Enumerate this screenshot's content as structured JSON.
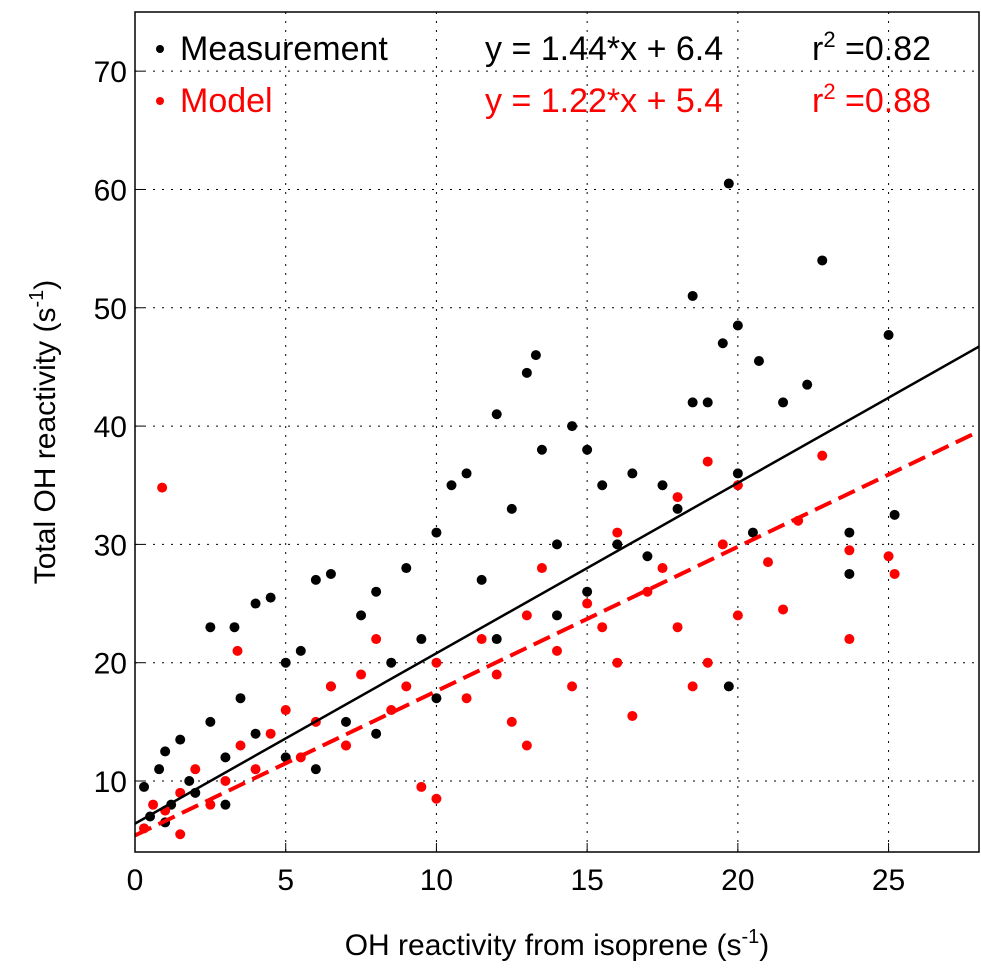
{
  "chart_data": {
    "type": "scatter",
    "xlabel": [
      "OH reactivity from isoprene (s",
      "-1",
      ")"
    ],
    "ylabel": [
      "Total OH reactivity (s",
      "-1",
      ")"
    ],
    "xlim": [
      0,
      28
    ],
    "ylim": [
      4,
      75
    ],
    "xticks": [
      0,
      5,
      10,
      15,
      20,
      25
    ],
    "yticks": [
      10,
      20,
      30,
      40,
      50,
      60,
      70
    ],
    "grid": true,
    "legend": "upper left",
    "series": [
      {
        "name": "Measurement",
        "color": "#000000",
        "fit": {
          "slope": 1.44,
          "intercept": 6.4,
          "equation": "y = 1.44*x + 6.4",
          "r2_text": [
            "r",
            "2",
            " =0.82"
          ],
          "dash": false
        },
        "x": [
          0.3,
          0.5,
          0.8,
          1,
          1.2,
          1.5,
          1.8,
          2,
          2.5,
          2.5,
          3,
          3.3,
          3.5,
          4,
          4,
          4.5,
          5,
          5,
          5.5,
          6,
          6.5,
          6.5,
          7,
          7.5,
          8,
          8.5,
          9,
          9.5,
          10,
          10.5,
          11,
          11.5,
          12,
          12.5,
          13,
          13.3,
          13.5,
          14,
          14.5,
          15,
          15.5,
          16,
          16.5,
          17,
          17.5,
          18,
          18.5,
          18.5,
          19,
          19.5,
          19.7,
          20,
          20,
          20.5,
          20.7,
          21.5,
          22.3,
          22.8,
          23.7,
          23.7,
          25,
          25.2,
          19.7,
          15,
          12,
          8,
          6,
          3,
          1,
          10,
          14
        ],
        "values": [
          9.5,
          7,
          11,
          12.5,
          8,
          13.5,
          10,
          9,
          23,
          15,
          12,
          23,
          17,
          25,
          14,
          25.5,
          20,
          12,
          21,
          27,
          27.5,
          18,
          15,
          24,
          26,
          20,
          28,
          22,
          31,
          35,
          36,
          27,
          41,
          33,
          44.5,
          46,
          38,
          30,
          40,
          38,
          35,
          30,
          36,
          29,
          35,
          33,
          51,
          42,
          42,
          47,
          60.5,
          48.5,
          36,
          31,
          45.5,
          42,
          43.5,
          54,
          31,
          27.5,
          47.7,
          32.5,
          18,
          26,
          22,
          14,
          11,
          8,
          6.5,
          17,
          24
        ]
      },
      {
        "name": "Model",
        "color": "#ff0000",
        "fit": {
          "slope": 1.22,
          "intercept": 5.4,
          "equation": "y = 1.22*x + 5.4",
          "r2_text": [
            "r",
            "2",
            " =0.88"
          ],
          "dash": true
        },
        "x": [
          0.9,
          0.3,
          0.6,
          1,
          1.5,
          1.5,
          2,
          2.5,
          3,
          3.4,
          3.5,
          4,
          4.5,
          5,
          5.5,
          6,
          6.5,
          7,
          7.5,
          8,
          8.5,
          9,
          9.5,
          10,
          10,
          11,
          11.5,
          12,
          12.5,
          13,
          13,
          13.5,
          14,
          14.5,
          15,
          15.5,
          16,
          16.5,
          17,
          17.5,
          18,
          18.5,
          19,
          19,
          19.5,
          20,
          20,
          21,
          21.5,
          22,
          22.8,
          23.7,
          23.7,
          25,
          25.2,
          18,
          16,
          7
        ],
        "values": [
          34.8,
          6,
          8,
          7.5,
          9,
          5.5,
          11,
          8,
          10,
          21,
          13,
          11,
          14,
          16,
          12,
          15,
          18,
          13,
          19,
          22,
          16,
          18,
          9.5,
          8.5,
          20,
          17,
          22,
          19,
          15,
          13,
          24,
          28,
          21,
          18,
          25,
          23,
          20,
          15.5,
          26,
          28,
          23,
          18,
          37,
          20,
          30,
          35,
          24,
          28.5,
          24.5,
          32,
          37.5,
          22,
          29.5,
          29,
          27.5,
          34,
          31,
          13
        ]
      }
    ]
  }
}
